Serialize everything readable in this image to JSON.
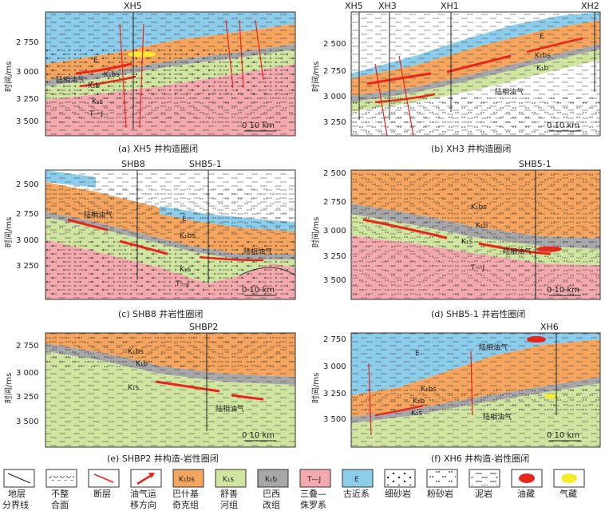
{
  "axis_label": "时间/ms",
  "scale_label": "0    10 km",
  "oil_label": "陆相油气",
  "colors": {
    "paleogene": "#8dcdec",
    "bashijiqike": "#f5a55e",
    "shushanhe": "#cfe5a0",
    "baxigai": "#a7a7a9",
    "triassic_jurassic": "#f3a9ad",
    "oil": "#e8261c",
    "gas": "#f7ec2b",
    "fault": "#e8261c"
  },
  "panels": [
    {
      "id": "a",
      "caption": "(a) XH5 井构造圈闭",
      "wells": [
        "XH5"
      ],
      "ticks": [
        "2 750",
        "3 000",
        "3 250",
        "3 500"
      ],
      "formations": [
        "E",
        "K₁bs",
        "K₁b",
        "K₁s",
        "T—J"
      ]
    },
    {
      "id": "b",
      "caption": "(b) XH3 井构造圈闭",
      "wells": [
        "XH5",
        "XH3",
        "XH1",
        "XH2"
      ],
      "ticks": [
        "2 500",
        "2 750",
        "3 000",
        "3 250"
      ],
      "formations": [
        "E",
        "K₁bs",
        "K₁b"
      ]
    },
    {
      "id": "c",
      "caption": "(c) SHB8 井岩性圈闭",
      "wells": [
        "SHB8",
        "SHB5-1"
      ],
      "ticks": [
        "2 500",
        "2 750",
        "3 000",
        "3 250"
      ],
      "formations": [
        "E",
        "K₁bs",
        "K₁s",
        "T—J"
      ]
    },
    {
      "id": "d",
      "caption": "(d) SHB5-1 井岩性圈闭",
      "wells": [
        "SHB5-1"
      ],
      "ticks": [
        "2 500",
        "2 750",
        "3 000",
        "3 250",
        "3 500"
      ],
      "formations": [
        "K₁bs",
        "K₁b",
        "K₁s",
        "T—J"
      ]
    },
    {
      "id": "e",
      "caption": "(e) SHBP2 井构造-岩性圈闭",
      "wells": [
        "SHBP2"
      ],
      "ticks": [
        "2 750",
        "3 000",
        "3 250",
        "3 500"
      ],
      "formations": [
        "K₁bs",
        "K₁b",
        "K₁s"
      ]
    },
    {
      "id": "f",
      "caption": "(f) XH6 井构造-岩性圈闭",
      "wells": [
        "XH6"
      ],
      "ticks": [
        "2 750",
        "3 000",
        "3 250",
        "3 500"
      ],
      "formations": [
        "E",
        "K₁bs",
        "K₁b",
        "K₁s"
      ]
    }
  ],
  "legend": [
    {
      "label": "地层分界线",
      "line1": "地层",
      "line2": "分界线",
      "icon": "boundary-line-icon"
    },
    {
      "label": "不整合面",
      "line1": "不整",
      "line2": "合面",
      "icon": "unconformity-icon"
    },
    {
      "label": "断层",
      "line1": "断层",
      "line2": "",
      "icon": "fault-icon"
    },
    {
      "label": "油气运移方向",
      "line1": "油气运",
      "line2": "移方向",
      "icon": "migration-arrow-icon"
    },
    {
      "label": "巴什基奇克组",
      "line1": "巴什基",
      "line2": "奇克组",
      "icon": "bashijiqike-swatch-icon",
      "symbol": "K₁bs"
    },
    {
      "label": "舒善河组",
      "line1": "舒善",
      "line2": "河组",
      "icon": "shushanhe-swatch-icon",
      "symbol": "K₁s"
    },
    {
      "label": "巴西改组",
      "line1": "巴西",
      "line2": "改组",
      "icon": "baxigai-swatch-icon",
      "symbol": "K₁b"
    },
    {
      "label": "三叠—侏罗系",
      "line1": "三叠—",
      "line2": "侏罗系",
      "icon": "triassic-jurassic-swatch-icon",
      "symbol": "T—J"
    },
    {
      "label": "古近系",
      "line1": "古近系",
      "line2": "",
      "icon": "paleogene-swatch-icon",
      "symbol": "E"
    },
    {
      "label": "细砂岩",
      "line1": "细砂岩",
      "line2": "",
      "icon": "fine-sandstone-icon"
    },
    {
      "label": "粉砂岩",
      "line1": "粉砂岩",
      "line2": "",
      "icon": "siltstone-icon"
    },
    {
      "label": "泥岩",
      "line1": "泥岩",
      "line2": "",
      "icon": "mudstone-icon"
    },
    {
      "label": "油藏",
      "line1": "油藏",
      "line2": "",
      "icon": "oil-reservoir-icon"
    },
    {
      "label": "气藏",
      "line1": "气藏",
      "line2": "",
      "icon": "gas-reservoir-icon"
    }
  ]
}
